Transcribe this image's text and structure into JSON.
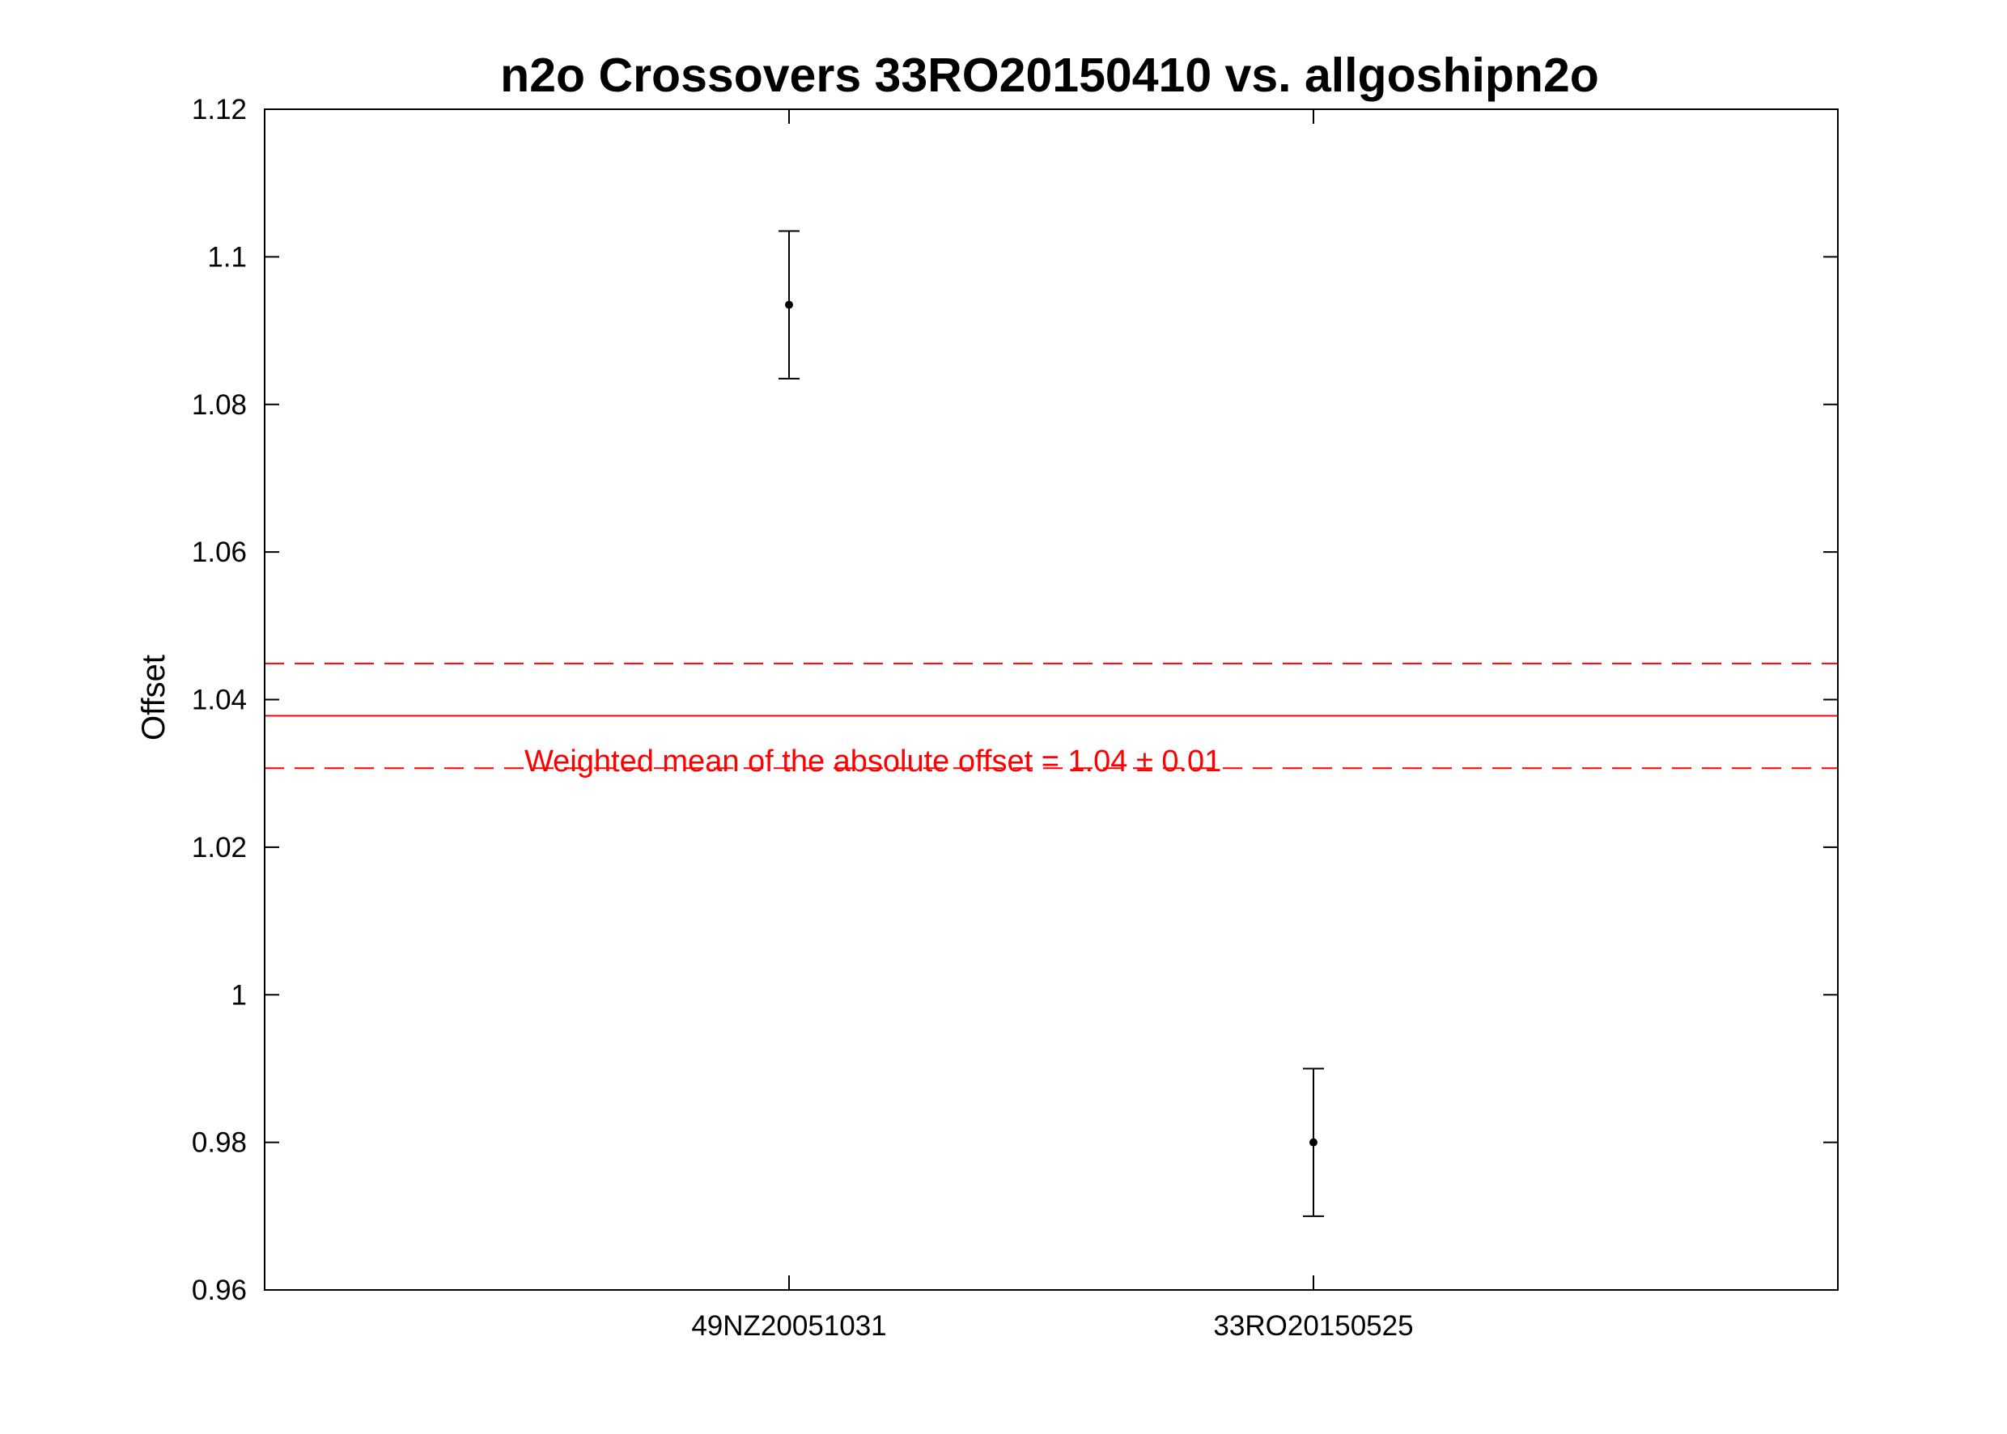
{
  "chart_data": {
    "type": "scatter",
    "title": "n2o Crossovers 33RO20150410 vs. allgoshipn2o",
    "xlabel": "",
    "ylabel": "Offset",
    "ylim": [
      0.96,
      1.12
    ],
    "yticks": [
      "0.96",
      "0.98",
      "1",
      "1.02",
      "1.04",
      "1.06",
      "1.08",
      "1.1",
      "1.12"
    ],
    "categories": [
      "49NZ20051031",
      "33RO20150525"
    ],
    "xlim": [
      0,
      3
    ],
    "points": [
      {
        "category": "49NZ20051031",
        "x": 1,
        "y": 1.0935,
        "err_low": 1.0835,
        "err_high": 1.1035
      },
      {
        "category": "33RO20150525",
        "x": 2,
        "y": 0.98,
        "err_low": 0.97,
        "err_high": 0.99
      }
    ],
    "weighted_mean": {
      "value": 1.0378,
      "lower": 1.0307,
      "upper": 1.0449,
      "color": "#ff0000",
      "label": "Weighted mean of the absolute offset = 1.04 ± 0.01"
    },
    "grid": false,
    "legend": "none",
    "colors": {
      "points": "#000000",
      "mean": "#ff0000"
    }
  }
}
